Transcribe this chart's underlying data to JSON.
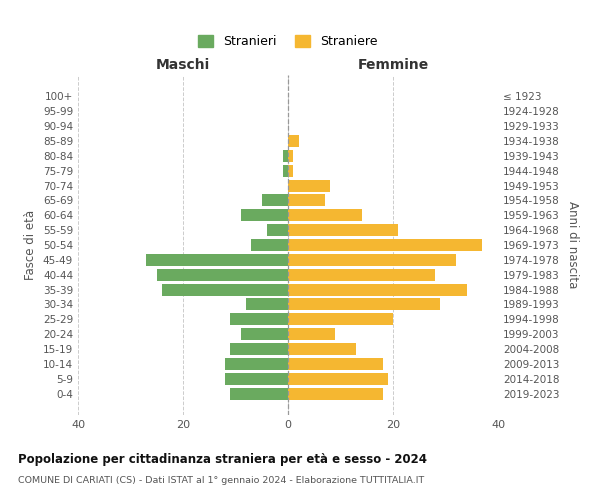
{
  "age_groups": [
    "0-4",
    "5-9",
    "10-14",
    "15-19",
    "20-24",
    "25-29",
    "30-34",
    "35-39",
    "40-44",
    "45-49",
    "50-54",
    "55-59",
    "60-64",
    "65-69",
    "70-74",
    "75-79",
    "80-84",
    "85-89",
    "90-94",
    "95-99",
    "100+"
  ],
  "birth_years": [
    "2019-2023",
    "2014-2018",
    "2009-2013",
    "2004-2008",
    "1999-2003",
    "1994-1998",
    "1989-1993",
    "1984-1988",
    "1979-1983",
    "1974-1978",
    "1969-1973",
    "1964-1968",
    "1959-1963",
    "1954-1958",
    "1949-1953",
    "1944-1948",
    "1939-1943",
    "1934-1938",
    "1929-1933",
    "1924-1928",
    "≤ 1923"
  ],
  "males": [
    11,
    12,
    12,
    11,
    9,
    11,
    8,
    24,
    25,
    27,
    7,
    4,
    9,
    5,
    0,
    1,
    1,
    0,
    0,
    0,
    0
  ],
  "females": [
    18,
    19,
    18,
    13,
    9,
    20,
    29,
    34,
    28,
    32,
    37,
    21,
    14,
    7,
    8,
    1,
    1,
    2,
    0,
    0,
    0
  ],
  "male_color": "#6aaa5f",
  "female_color": "#f5b731",
  "background_color": "#ffffff",
  "grid_color": "#cccccc",
  "title": "Popolazione per cittadinanza straniera per età e sesso - 2024",
  "subtitle": "COMUNE DI CARIATI (CS) - Dati ISTAT al 1° gennaio 2024 - Elaborazione TUTTITALIA.IT",
  "xlabel_left": "Maschi",
  "xlabel_right": "Femmine",
  "ylabel_left": "Fasce di età",
  "ylabel_right": "Anni di nascita",
  "legend_male": "Stranieri",
  "legend_female": "Straniere",
  "xlim": 40,
  "bar_height": 0.8
}
